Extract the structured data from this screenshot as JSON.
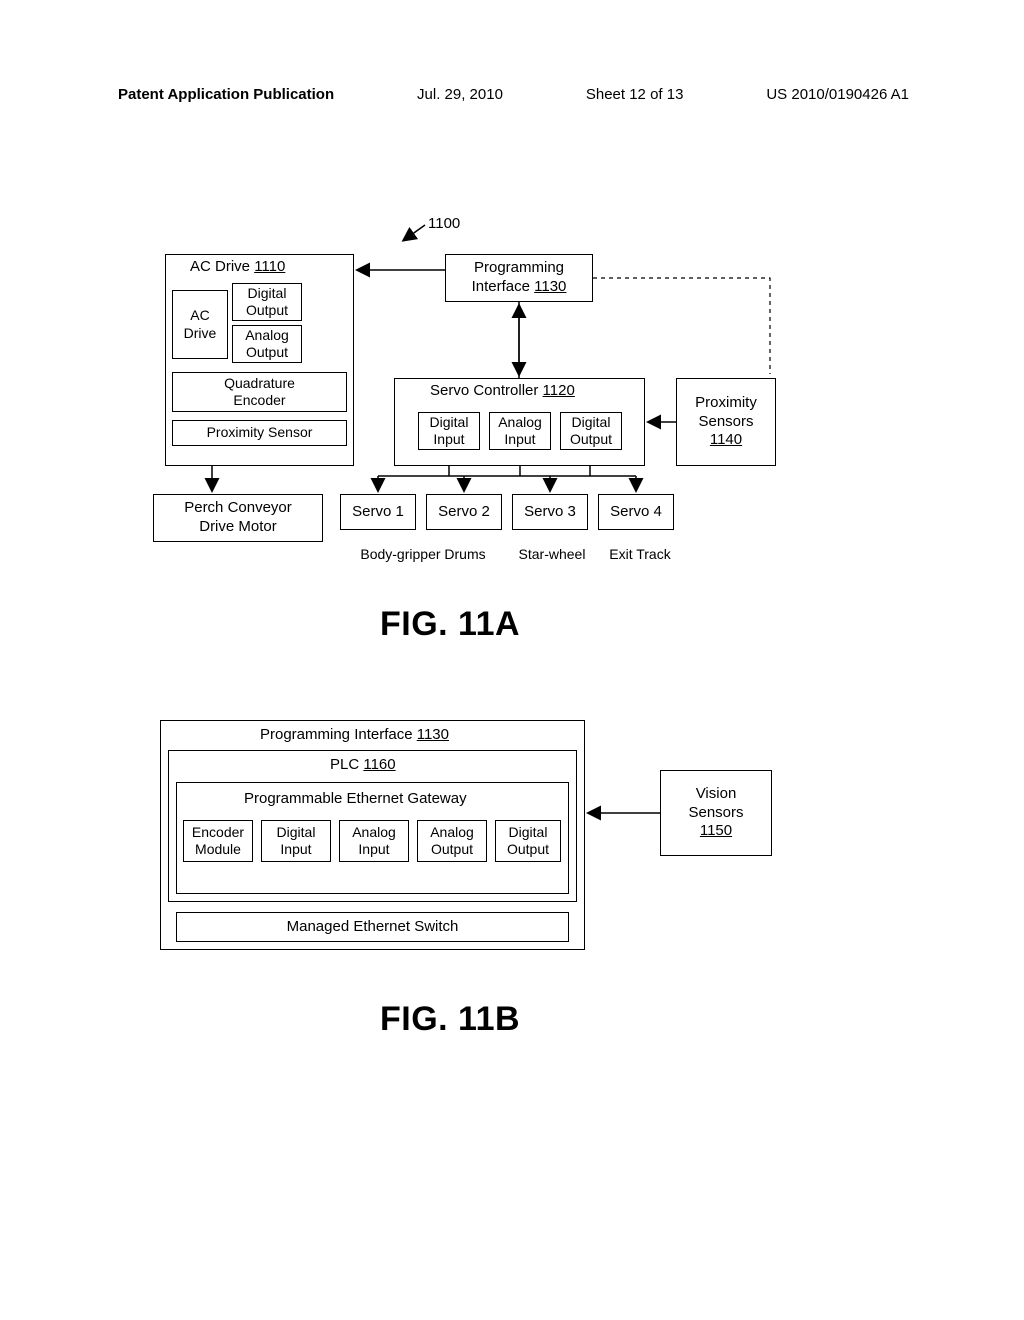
{
  "header": {
    "pubtype": "Patent Application Publication",
    "date": "Jul. 29, 2010",
    "sheet": "Sheet 12 of 13",
    "pubno": "US 2010/0190426 A1"
  },
  "figA": {
    "title": "FIG. 11A",
    "refnum": "1100",
    "acDriveGroup": {
      "title_pre": "AC Drive ",
      "title_num": "1110",
      "acDrive": "AC\nDrive",
      "digitalOutput": "Digital\nOutput",
      "analogOutput": "Analog\nOutput",
      "quadEncoder": "Quadrature\nEncoder",
      "proxSensor": "Proximity Sensor"
    },
    "progIf": {
      "title_pre": "Programming\nInterface ",
      "num": "1130"
    },
    "servoCtrl": {
      "title_pre": "Servo Controller ",
      "num": "1120",
      "digIn": "Digital\nInput",
      "anaIn": "Analog\nInput",
      "digOut": "Digital\nOutput"
    },
    "proxSensors": {
      "line1": "Proximity",
      "line2": "Sensors",
      "num": "1140"
    },
    "perch": "Perch Conveyor\nDrive Motor",
    "servo1": "Servo 1",
    "servo2": "Servo 2",
    "servo3": "Servo 3",
    "servo4": "Servo 4",
    "cap_bodygripper": "Body-gripper Drums",
    "cap_starwheel": "Star-wheel",
    "cap_exit": "Exit Track"
  },
  "figB": {
    "title": "FIG. 11B",
    "progIf_pre": "Programming Interface ",
    "progIf_num": "1130",
    "plc_pre": "PLC ",
    "plc_num": "1160",
    "peg": "Programmable Ethernet Gateway",
    "encMod": "Encoder\nModule",
    "digIn": "Digital\nInput",
    "anaIn": "Analog\nInput",
    "anaOut": "Analog\nOutput",
    "digOut": "Digital\nOutput",
    "mes": "Managed Ethernet Switch",
    "vision": {
      "line1": "Vision",
      "line2": "Sensors",
      "num": "1150"
    }
  },
  "style": {
    "stroke": "#000000",
    "dash": "4 4",
    "arrow_size": 9
  }
}
